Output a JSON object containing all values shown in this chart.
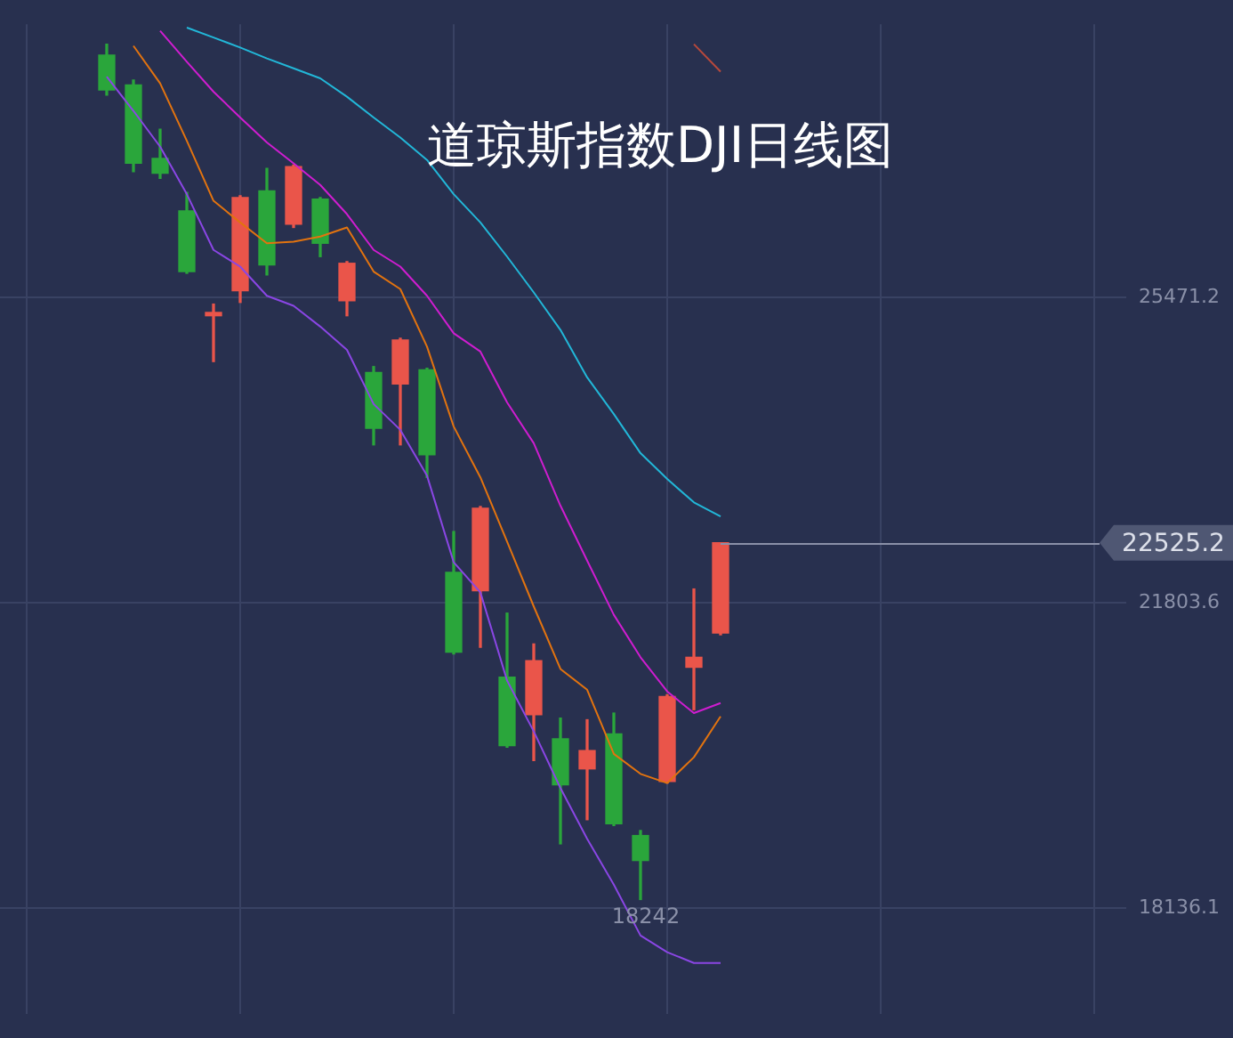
{
  "chart_data": {
    "type": "candlestick",
    "title": "道琼斯指数DJI日线图",
    "categories": [
      null,
      null,
      null,
      null,
      null,
      null,
      null,
      null,
      null,
      null,
      null,
      null,
      null,
      null,
      null,
      null,
      null,
      null,
      null,
      null,
      null,
      null,
      null,
      null
    ],
    "ohlc": [
      [
        28380,
        28510,
        27900,
        27960
      ],
      [
        28020,
        28080,
        26980,
        27080
      ],
      [
        27140,
        27490,
        26900,
        26960
      ],
      [
        26510,
        26730,
        25760,
        25780
      ],
      [
        25250,
        25390,
        24700,
        25290
      ],
      [
        25550,
        26690,
        25410,
        26670
      ],
      [
        26750,
        27020,
        25740,
        25860
      ],
      [
        26350,
        27060,
        26310,
        27040
      ],
      [
        26650,
        26670,
        25960,
        26120
      ],
      [
        25430,
        25900,
        25250,
        25880
      ],
      [
        24570,
        24640,
        23700,
        23900
      ],
      [
        24430,
        24980,
        23700,
        24960
      ],
      [
        24600,
        24620,
        23310,
        23580
      ],
      [
        22170,
        22660,
        21190,
        21210
      ],
      [
        21950,
        22960,
        21270,
        22940
      ],
      [
        20910,
        21680,
        20070,
        20090
      ],
      [
        20460,
        21310,
        19910,
        21110
      ],
      [
        20170,
        20420,
        18910,
        19620
      ],
      [
        19810,
        20400,
        19200,
        20030
      ],
      [
        20230,
        20480,
        19130,
        19150
      ],
      [
        19010,
        19070,
        18242,
        18710
      ],
      [
        19660,
        20700,
        19640,
        20680
      ],
      [
        21030,
        21970,
        20520,
        21150
      ],
      [
        21440,
        22525.2,
        21420,
        22525.2
      ]
    ],
    "colors": [
      "#2aa63b",
      "#2aa63b",
      "#2aa63b",
      "#2aa63b",
      "#ea554a",
      "#ea554a",
      "#2aa63b",
      "#ea554a",
      "#2aa63b",
      "#ea554a",
      "#2aa63b",
      "#ea554a",
      "#2aa63b",
      "#2aa63b",
      "#ea554a",
      "#2aa63b",
      "#ea554a",
      "#2aa63b",
      "#ea554a",
      "#2aa63b",
      "#2aa63b",
      "#ea554a",
      "#ea554a",
      "#ea554a"
    ],
    "series": [
      {
        "type": "line",
        "color": "#e2730f",
        "values": [
          null,
          28490,
          28040,
          27350,
          26630,
          26370,
          26120,
          26140,
          26200,
          26310,
          25780,
          25570,
          24880,
          23920,
          23310,
          22540,
          21760,
          21010,
          20760,
          19990,
          19750,
          19640,
          19950,
          20440
        ]
      },
      {
        "type": "line",
        "color": "#8a46e4",
        "values": [
          28120,
          27710,
          27280,
          26710,
          26040,
          25840,
          25490,
          25370,
          25120,
          24840,
          24190,
          23880,
          23330,
          22290,
          21930,
          20870,
          20260,
          19580,
          18970,
          18420,
          17810,
          17610,
          17480,
          17480
        ]
      },
      {
        "type": "line",
        "color": "#cf1dd0",
        "values": [
          null,
          null,
          28670,
          28300,
          27940,
          27630,
          27330,
          27080,
          26820,
          26470,
          26040,
          25840,
          25490,
          25040,
          24820,
          24210,
          23720,
          22970,
          22310,
          21660,
          21150,
          20740,
          20480,
          20600
        ]
      },
      {
        "type": "line",
        "color": "#22b7d8",
        "values": [
          null,
          null,
          null,
          28710,
          28590,
          28470,
          28340,
          28220,
          28100,
          27880,
          27630,
          27390,
          27120,
          26710,
          26370,
          25960,
          25530,
          25080,
          24510,
          24070,
          23600,
          23290,
          23010,
          22840
        ]
      },
      {
        "type": "line",
        "color": "#b8493c",
        "values": [
          null,
          null,
          null,
          null,
          null,
          null,
          null,
          null,
          null,
          null,
          null,
          null,
          null,
          null,
          null,
          null,
          null,
          null,
          null,
          null,
          null,
          null,
          28510,
          28180
        ]
      }
    ],
    "ylim": [
      16870,
      28750
    ],
    "yticks": [
      25471.2,
      21803.6,
      18136.1
    ],
    "grid": true,
    "tick_labels": "y",
    "marker": "none",
    "ref_lines": [
      {
        "axis": "y",
        "value": 22525.2,
        "label": "22525.2",
        "color": "#8a90a8"
      }
    ],
    "annotations": [
      {
        "text": "18242",
        "y": 18242
      }
    ]
  }
}
